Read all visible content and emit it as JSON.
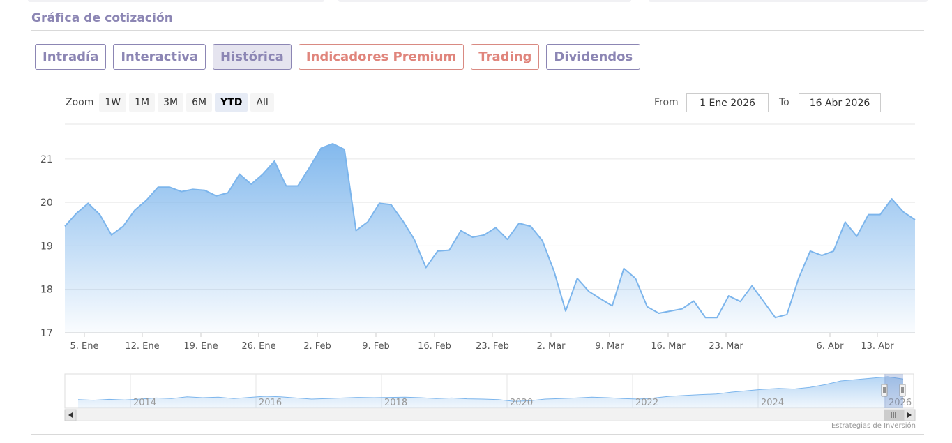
{
  "section": {
    "title": "Gráfica de cotización"
  },
  "tabs": [
    {
      "label": "Intradía",
      "active": false,
      "premium": false
    },
    {
      "label": "Interactiva",
      "active": false,
      "premium": false
    },
    {
      "label": "Histórica",
      "active": true,
      "premium": false
    },
    {
      "label": "Indicadores Premium",
      "active": false,
      "premium": true
    },
    {
      "label": "Trading",
      "active": false,
      "premium": true
    },
    {
      "label": "Dividendos",
      "active": false,
      "premium": false
    }
  ],
  "zoom": {
    "label": "Zoom",
    "buttons": [
      "1W",
      "1M",
      "3M",
      "6M",
      "YTD",
      "All"
    ],
    "selected": "YTD"
  },
  "range": {
    "from_label": "From",
    "from_value": "1 Ene 2026",
    "to_label": "To",
    "to_value": "16 Abr 2026"
  },
  "credit": "Estrategias de Inversión",
  "colors": {
    "accent": "#8c86b4",
    "premium": "#e0857c",
    "line": "#7cb5ec"
  },
  "chart_data": {
    "type": "area",
    "ylim": [
      17,
      21.8
    ],
    "yticks": [
      "17",
      "18",
      "19",
      "20",
      "21"
    ],
    "xlabels": [
      "5. Ene",
      "12. Ene",
      "19. Ene",
      "26. Ene",
      "2. Feb",
      "9. Feb",
      "16. Feb",
      "23. Feb",
      "2. Mar",
      "9. Mar",
      "16. Mar",
      "23. Mar",
      "6. Abr",
      "13. Abr"
    ],
    "series": [
      {
        "values": [
          19.45,
          19.75,
          19.98,
          19.72,
          19.25,
          19.45,
          19.82,
          20.05,
          20.35,
          20.35,
          20.25,
          20.3,
          20.28,
          20.15,
          20.22,
          20.65,
          20.42,
          20.65,
          20.95,
          20.38,
          20.38,
          20.8,
          21.25,
          21.35,
          21.22,
          19.35,
          19.55,
          19.98,
          19.95,
          19.58,
          19.15,
          18.5,
          18.88,
          18.9,
          19.35,
          19.2,
          19.25,
          19.42,
          19.15,
          19.52,
          19.45,
          19.12,
          18.42,
          17.5,
          18.25,
          17.95,
          17.78,
          17.62,
          18.48,
          18.25,
          17.6,
          17.45,
          17.5,
          17.55,
          17.73,
          17.35,
          17.35,
          17.85,
          17.72,
          18.08,
          17.72,
          17.35,
          17.42,
          18.25,
          18.88,
          18.78,
          18.88,
          19.55,
          19.22,
          19.72,
          19.72,
          20.08,
          19.78,
          19.6
        ]
      }
    ],
    "navigator": {
      "year_labels": [
        "2014",
        "2016",
        "2018",
        "2020",
        "2022",
        "2024",
        "2026"
      ],
      "values": [
        0.18,
        0.16,
        0.19,
        0.17,
        0.2,
        0.24,
        0.22,
        0.28,
        0.25,
        0.27,
        0.22,
        0.26,
        0.3,
        0.28,
        0.24,
        0.2,
        0.22,
        0.24,
        0.26,
        0.25,
        0.26,
        0.27,
        0.25,
        0.22,
        0.24,
        0.21,
        0.2,
        0.18,
        0.12,
        0.14,
        0.2,
        0.22,
        0.24,
        0.27,
        0.25,
        0.22,
        0.2,
        0.24,
        0.3,
        0.33,
        0.36,
        0.38,
        0.45,
        0.5,
        0.55,
        0.58,
        0.56,
        0.62,
        0.72,
        0.85,
        0.9,
        0.95,
        1.0,
        0.92
      ]
    }
  }
}
